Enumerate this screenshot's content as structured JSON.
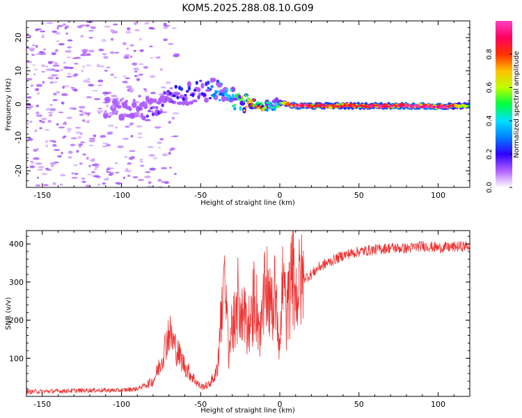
{
  "figure_title": "KOM5.2025.288.08.10.G09",
  "chart_data": [
    {
      "type": "heatmap",
      "title": "KOM5.2025.288.08.10.G09",
      "xlabel": "Height of straight line (km)",
      "ylabel": "Frequency (Hz)",
      "xlim": [
        -160,
        120
      ],
      "ylim": [
        -25,
        25
      ],
      "xticks": [
        -150,
        -100,
        -50,
        0,
        50,
        100
      ],
      "yticks": [
        -20,
        -10,
        0,
        10,
        20
      ],
      "colorbar": {
        "label": "Normalized spectral amplitude",
        "range": [
          0,
          1
        ],
        "ticks": [
          0.0,
          0.2,
          0.4,
          0.6,
          0.8
        ],
        "tick_labels": [
          "0.0",
          "0.2",
          "0.4",
          "0.6",
          "0.8"
        ],
        "colors": [
          "#ffffff",
          "#b060ff",
          "#3000ff",
          "#0080ff",
          "#00e0ff",
          "#00ff40",
          "#c0ff00",
          "#ffc000",
          "#ff3000",
          "#ff0060",
          "#ff40c0"
        ]
      },
      "trace": {
        "x": [
          -160,
          -120,
          -100,
          -90,
          -80,
          -70,
          -60,
          -50,
          -40,
          -35,
          -30,
          -25,
          -20,
          -15,
          -10,
          -5,
          0,
          5,
          10,
          20,
          40,
          60,
          80,
          100,
          120
        ],
        "freq": [
          0,
          0,
          -1,
          -2,
          -1,
          2,
          3,
          4,
          4.5,
          3,
          1.5,
          1,
          0.5,
          0,
          -0.5,
          -0.8,
          0.5,
          0,
          -0.5,
          -0.5,
          -0.5,
          -0.5,
          -0.5,
          -0.7,
          -0.5
        ],
        "amplitude": [
          0.02,
          0.04,
          0.08,
          0.12,
          0.15,
          0.2,
          0.25,
          0.22,
          0.3,
          0.32,
          0.4,
          0.55,
          0.7,
          0.8,
          0.6,
          0.35,
          0.5,
          0.75,
          0.95,
          0.85,
          0.8,
          0.85,
          0.95,
          1.0,
          0.5
        ]
      }
    },
    {
      "type": "line",
      "title": "",
      "xlabel": "Height of straight line (km)",
      "ylabel": "SNR (v/v)",
      "xlim": [
        -160,
        120
      ],
      "ylim": [
        0,
        435
      ],
      "xticks": [
        -150,
        -100,
        -50,
        0,
        50,
        100
      ],
      "yticks": [
        100,
        200,
        300,
        400
      ],
      "series": [
        {
          "name": "SNR",
          "color": "#ee3030",
          "x": [
            -160,
            -140,
            -120,
            -100,
            -90,
            -80,
            -75,
            -72,
            -70,
            -65,
            -60,
            -55,
            -50,
            -45,
            -40,
            -38,
            -36,
            -34,
            -32,
            -30,
            -28,
            -26,
            -24,
            -22,
            -20,
            -18,
            -16,
            -14,
            -12,
            -10,
            -8,
            -6,
            -4,
            -2,
            0,
            2,
            4,
            6,
            8,
            10,
            12,
            15,
            20,
            25,
            30,
            40,
            50,
            60,
            70,
            80,
            90,
            100,
            110,
            120
          ],
          "y": [
            12,
            14,
            16,
            16,
            20,
            40,
            90,
            140,
            170,
            120,
            80,
            50,
            25,
            30,
            60,
            150,
            310,
            230,
            120,
            200,
            160,
            280,
            200,
            240,
            150,
            190,
            280,
            210,
            160,
            250,
            300,
            230,
            240,
            280,
            110,
            330,
            200,
            260,
            320,
            270,
            290,
            310,
            320,
            340,
            350,
            370,
            380,
            385,
            390,
            388,
            395,
            390,
            392,
            395
          ]
        }
      ]
    }
  ]
}
